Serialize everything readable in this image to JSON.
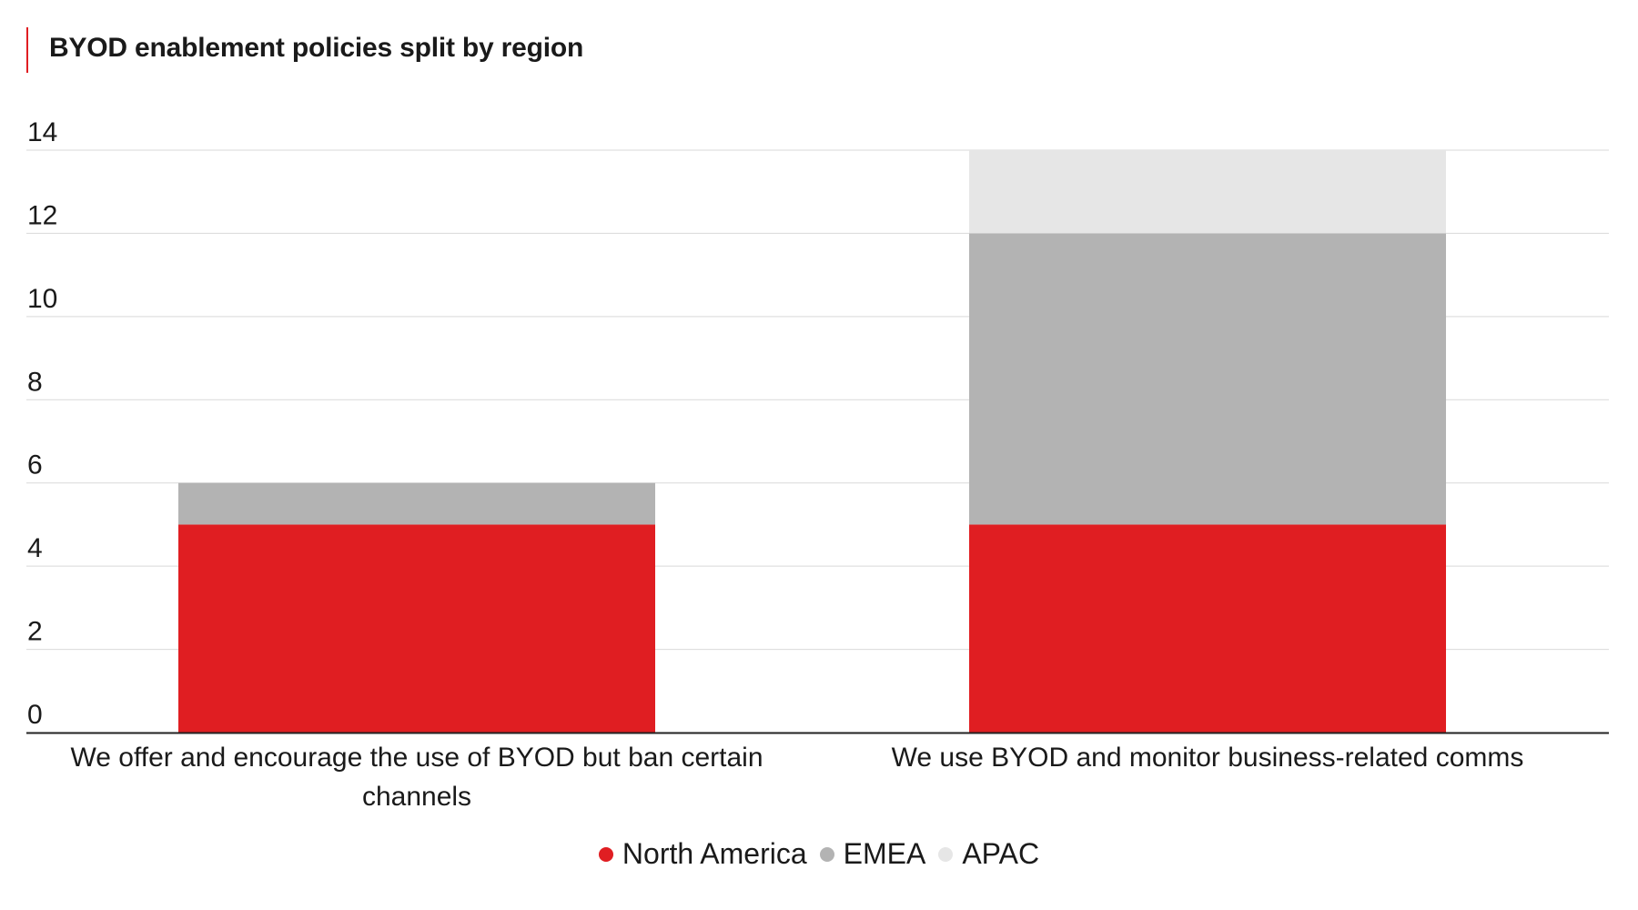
{
  "title": "BYOD enablement policies split by region",
  "colors": {
    "accent": "#e01e22",
    "grid": "#d9d9d9",
    "axis": "#222222"
  },
  "chart_data": {
    "type": "bar",
    "stacked": true,
    "title": "BYOD enablement policies split by region",
    "categories": [
      [
        "We offer and encourage the use of BYOD but ban certain",
        "channels"
      ],
      [
        "We use BYOD and monitor business-related comms"
      ]
    ],
    "series": [
      {
        "name": "North America",
        "color": "#e01e22",
        "values": [
          5,
          5
        ]
      },
      {
        "name": "EMEA",
        "color": "#b3b3b3",
        "values": [
          1,
          7
        ]
      },
      {
        "name": "APAC",
        "color": "#e6e6e6",
        "values": [
          0,
          2
        ]
      }
    ],
    "yticks": [
      0,
      2,
      4,
      6,
      8,
      10,
      12,
      14
    ],
    "ylim": [
      0,
      14
    ],
    "xlabel": "",
    "ylabel": "",
    "grid": true,
    "legend_position": "bottom"
  }
}
